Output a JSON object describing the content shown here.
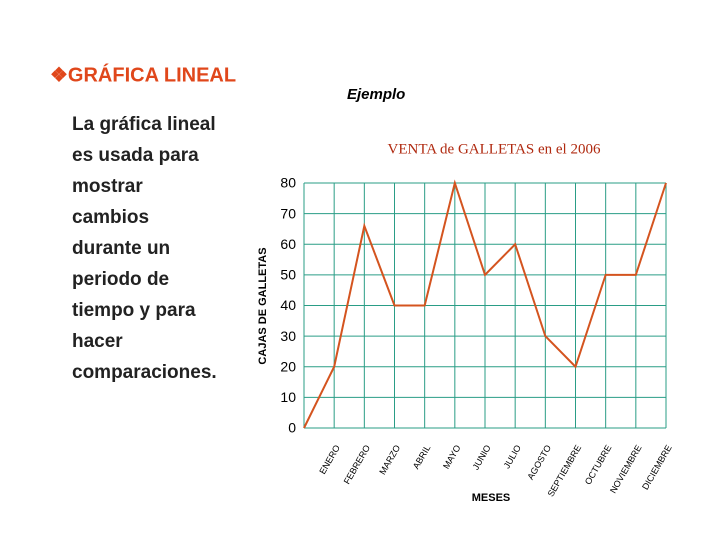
{
  "heading": "❖GRÁFICA LINEAL",
  "example_label": "Ejemplo",
  "intro": {
    "lines": [
      "La gráfica lineal",
      "es usada para",
      "mostrar",
      "cambios",
      "durante un",
      "periodo de",
      "tiempo y para",
      "hacer",
      "comparaciones."
    ]
  },
  "chart_data": {
    "type": "line",
    "title": "VENTA  de GALLETAS en el 2006",
    "x_label": "MESES",
    "y_label": "CAJAS  DE  GALLETAS",
    "categories": [
      null,
      "ENERO",
      "FEBRERO",
      "MARZO",
      "ABRIL",
      "MAYO",
      "JUNIO",
      "JULIO",
      "AGOSTO",
      "SEPTIEMBRE",
      "OCTUBRE",
      "NOVIEMBRE",
      "DICIEMBRE"
    ],
    "values": [
      0,
      20,
      66,
      40,
      40,
      80,
      50,
      60,
      30,
      20,
      50,
      50,
      80
    ],
    "color": "#d4541f",
    "grid_color": "#2a9d86",
    "ylim": [
      0,
      80
    ],
    "yticks": [
      0,
      10,
      20,
      30,
      40,
      50,
      60,
      70,
      80
    ],
    "grid": true
  }
}
